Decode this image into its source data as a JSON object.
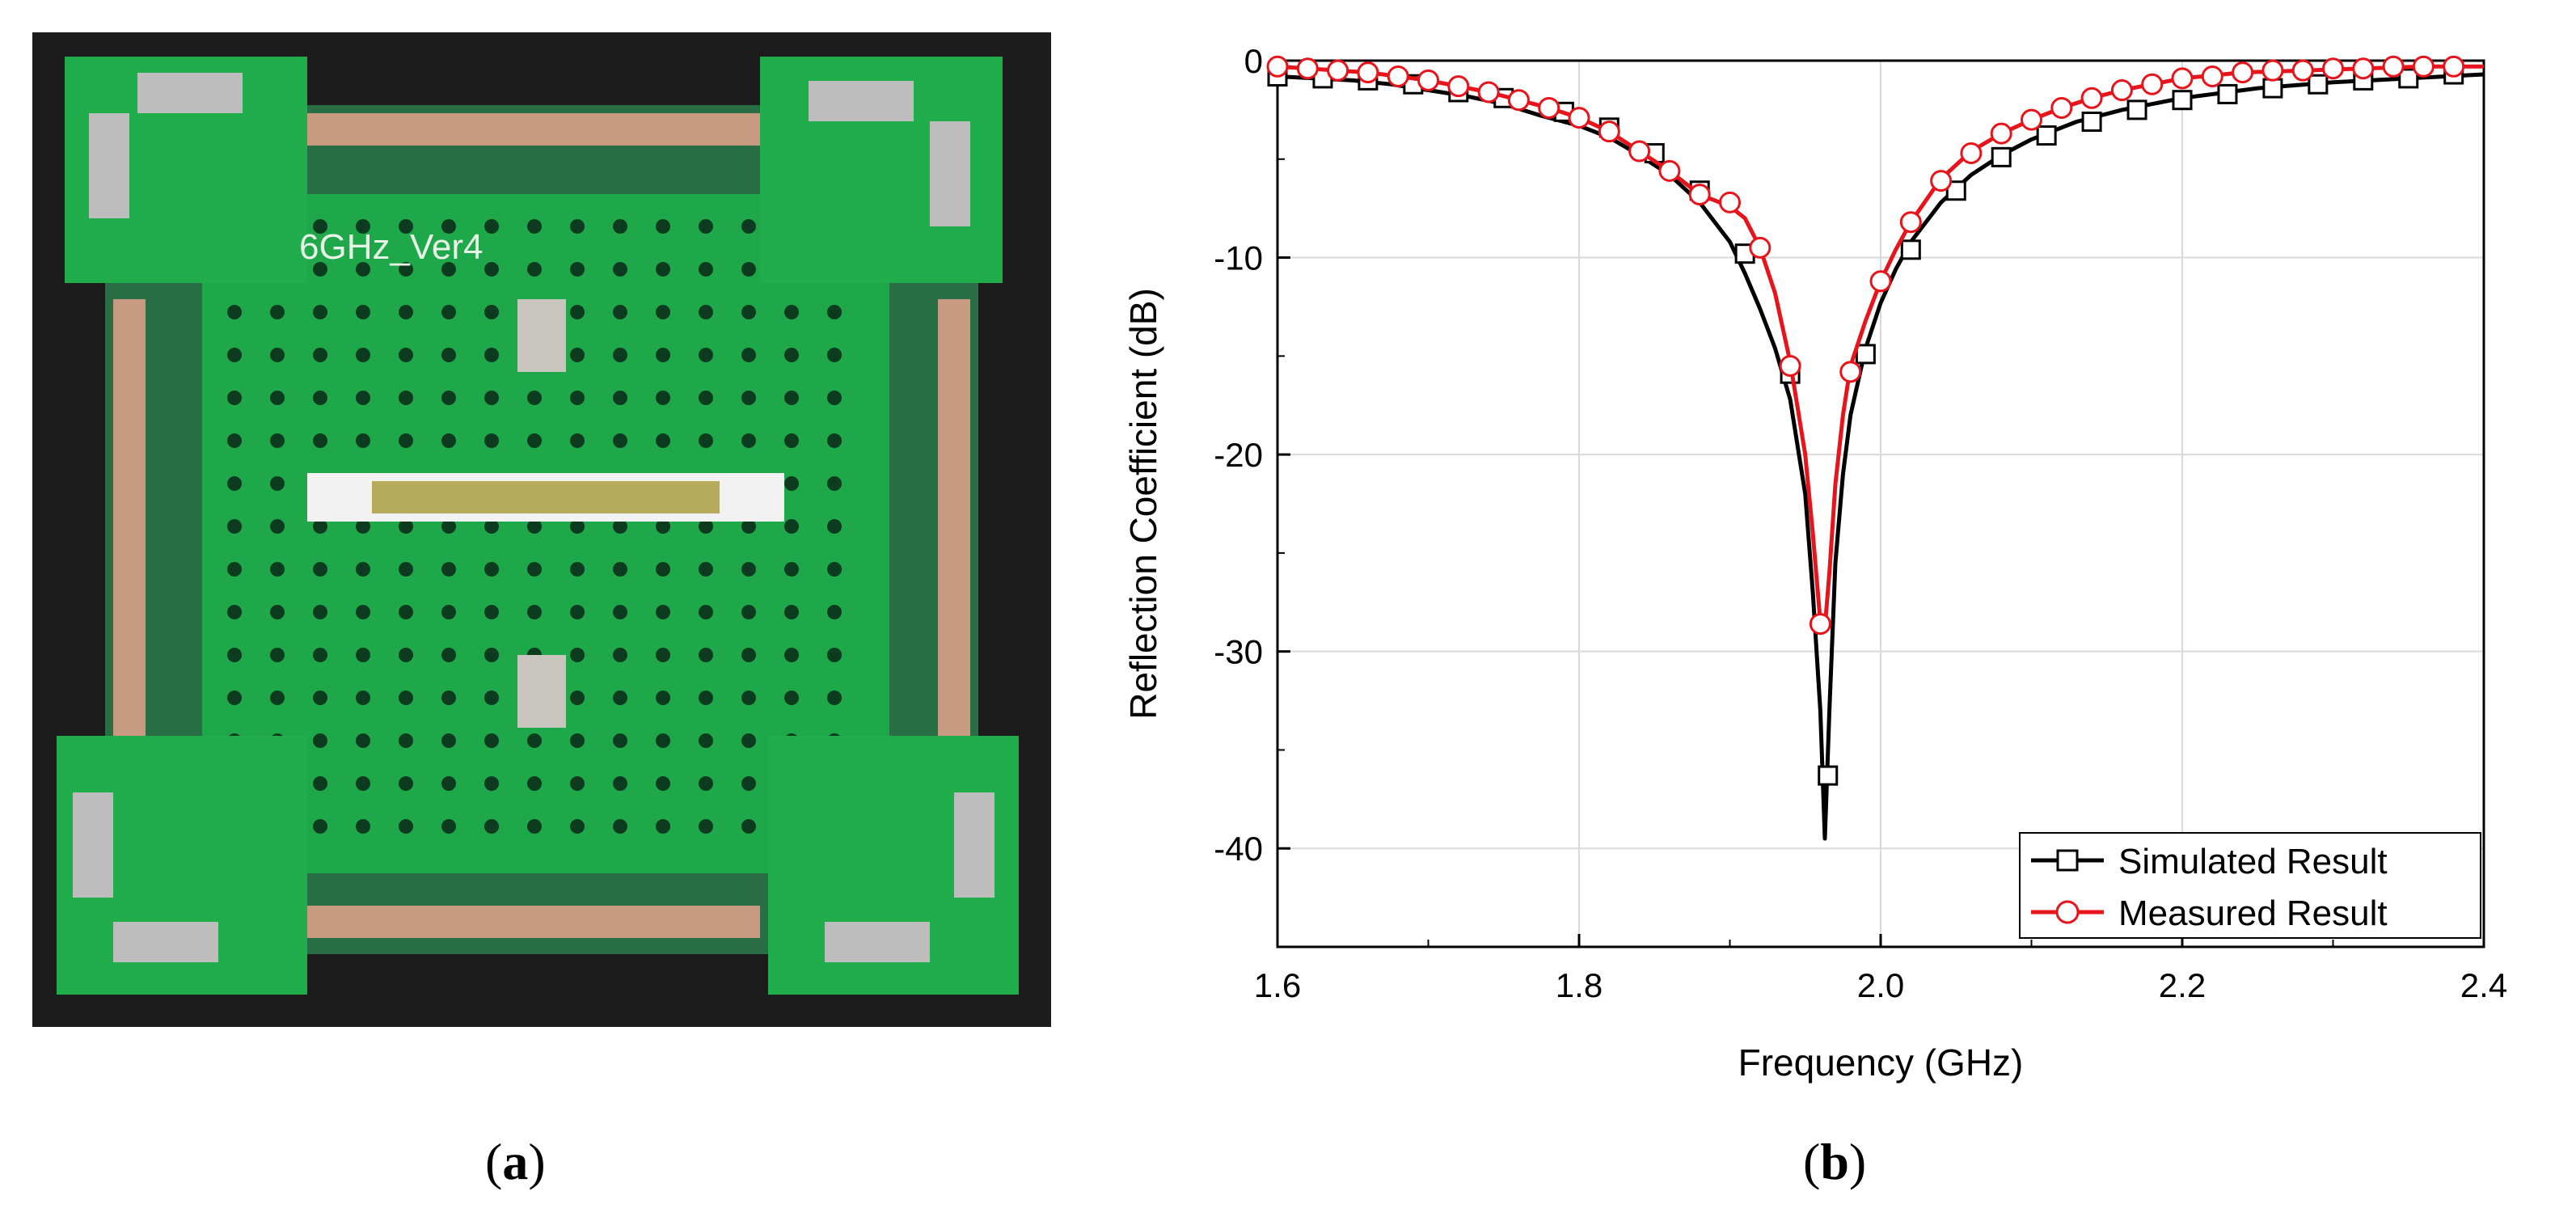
{
  "panels": {
    "a": {
      "label": "a",
      "board_text": "6GHz_Ver4"
    },
    "b": {
      "label": "b"
    }
  },
  "colors": {
    "simulated": "#000000",
    "measured": "#e8141c",
    "board_green": "#1fa84a",
    "background_dark": "#1c1c1c"
  },
  "chart_data": {
    "type": "line",
    "xlabel": "Frequency (GHz)",
    "ylabel": "Reflection Coefficient (dB)",
    "xlim": [
      1.6,
      2.4
    ],
    "ylim": [
      -45,
      0
    ],
    "xticks": [
      1.6,
      1.8,
      2.0,
      2.2,
      2.4
    ],
    "xtick_labels": [
      "1.6",
      "1.8",
      "2.0",
      "2.2",
      "2.4"
    ],
    "yticks": [
      0,
      -10,
      -20,
      -30,
      -40
    ],
    "ytick_labels": [
      "0",
      "-10",
      "-20",
      "-30",
      "-40"
    ],
    "grid": true,
    "legend_position": "bottom-right",
    "series": [
      {
        "name": "Simulated Result",
        "marker": "square",
        "color": "#000000",
        "x": [
          1.6,
          1.625,
          1.65,
          1.675,
          1.7,
          1.725,
          1.75,
          1.775,
          1.8,
          1.82,
          1.84,
          1.86,
          1.88,
          1.9,
          1.91,
          1.92,
          1.93,
          1.94,
          1.95,
          1.955,
          1.96,
          1.963,
          1.966,
          1.97,
          1.975,
          1.98,
          1.99,
          2.0,
          2.01,
          2.02,
          2.04,
          2.06,
          2.08,
          2.1,
          2.13,
          2.16,
          2.2,
          2.25,
          2.3,
          2.35,
          2.4
        ],
        "y": [
          -0.8,
          -0.9,
          -1.0,
          -1.2,
          -1.5,
          -1.8,
          -2.2,
          -2.8,
          -3.3,
          -3.9,
          -4.8,
          -5.8,
          -7.2,
          -9.2,
          -10.8,
          -12.6,
          -14.6,
          -17.2,
          -22.0,
          -27.0,
          -33.0,
          -39.5,
          -33.0,
          -25.5,
          -21.0,
          -18.0,
          -14.6,
          -12.3,
          -10.6,
          -9.2,
          -7.2,
          -5.8,
          -4.8,
          -4.0,
          -3.1,
          -2.5,
          -1.9,
          -1.4,
          -1.1,
          -0.9,
          -0.7
        ],
        "marker_x": [
          1.6,
          1.63,
          1.66,
          1.69,
          1.72,
          1.75,
          1.79,
          1.82,
          1.85,
          1.88,
          1.91,
          1.94,
          1.965,
          1.99,
          2.02,
          2.05,
          2.08,
          2.11,
          2.14,
          2.17,
          2.2,
          2.23,
          2.26,
          2.29,
          2.32,
          2.35,
          2.38
        ],
        "marker_y": [
          -0.8,
          -0.9,
          -1.0,
          -1.2,
          -1.6,
          -1.9,
          -2.6,
          -3.4,
          -4.7,
          -6.6,
          -9.8,
          -15.9,
          -36.3,
          -14.9,
          -9.6,
          -6.6,
          -4.9,
          -3.8,
          -3.1,
          -2.5,
          -2.0,
          -1.7,
          -1.4,
          -1.2,
          -1.0,
          -0.9,
          -0.7
        ]
      },
      {
        "name": "Measured Result",
        "marker": "circle",
        "color": "#e8141c",
        "x": [
          1.6,
          1.62,
          1.64,
          1.66,
          1.68,
          1.7,
          1.72,
          1.74,
          1.76,
          1.78,
          1.8,
          1.82,
          1.84,
          1.86,
          1.88,
          1.9,
          1.91,
          1.92,
          1.93,
          1.94,
          1.95,
          1.955,
          1.96,
          1.963,
          1.966,
          1.97,
          1.975,
          1.98,
          1.99,
          2.0,
          2.01,
          2.02,
          2.04,
          2.06,
          2.08,
          2.1,
          2.12,
          2.14,
          2.16,
          2.18,
          2.2,
          2.24,
          2.28,
          2.32,
          2.36,
          2.4
        ],
        "y": [
          -0.3,
          -0.4,
          -0.5,
          -0.6,
          -0.8,
          -1.0,
          -1.3,
          -1.6,
          -2.0,
          -2.4,
          -2.9,
          -3.6,
          -4.6,
          -5.6,
          -6.8,
          -7.4,
          -8.0,
          -9.5,
          -11.8,
          -15.3,
          -20.0,
          -24.0,
          -28.5,
          -28.8,
          -26.0,
          -21.5,
          -18.0,
          -15.5,
          -13.2,
          -11.2,
          -9.6,
          -8.2,
          -6.0,
          -4.6,
          -3.7,
          -3.0,
          -2.4,
          -1.9,
          -1.5,
          -1.2,
          -0.9,
          -0.6,
          -0.5,
          -0.4,
          -0.3,
          -0.3
        ],
        "marker_x": [
          1.6,
          1.62,
          1.64,
          1.66,
          1.68,
          1.7,
          1.72,
          1.74,
          1.76,
          1.78,
          1.8,
          1.82,
          1.84,
          1.86,
          1.88,
          1.9,
          1.92,
          1.94,
          1.96,
          1.98,
          2.0,
          2.02,
          2.04,
          2.06,
          2.08,
          2.1,
          2.12,
          2.14,
          2.16,
          2.18,
          2.2,
          2.22,
          2.24,
          2.26,
          2.28,
          2.3,
          2.32,
          2.34,
          2.36,
          2.38
        ],
        "marker_y": [
          -0.3,
          -0.4,
          -0.5,
          -0.6,
          -0.8,
          -1.0,
          -1.3,
          -1.6,
          -2.0,
          -2.4,
          -2.9,
          -3.6,
          -4.6,
          -5.6,
          -6.8,
          -7.2,
          -9.5,
          -15.5,
          -28.6,
          -15.8,
          -11.2,
          -8.2,
          -6.1,
          -4.7,
          -3.7,
          -3.0,
          -2.4,
          -1.9,
          -1.5,
          -1.2,
          -0.9,
          -0.8,
          -0.6,
          -0.5,
          -0.5,
          -0.4,
          -0.4,
          -0.3,
          -0.3,
          -0.3
        ]
      }
    ]
  }
}
